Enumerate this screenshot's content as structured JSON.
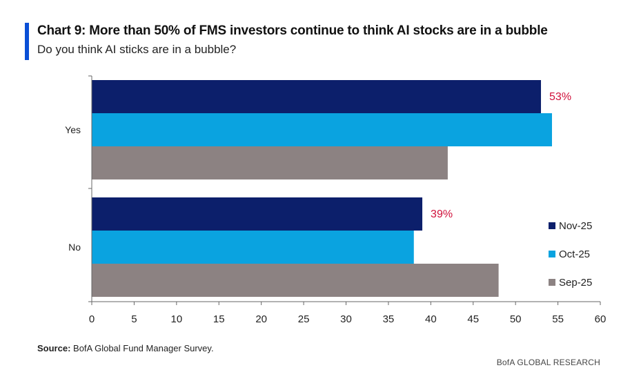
{
  "header": {
    "title": "Chart 9: More than 50% of FMS investors continue to think AI stocks are in a bubble",
    "subtitle": "Do you think AI sticks are in a bubble?",
    "accent_color": "#0a4fd6"
  },
  "footer": {
    "source_label": "Source:",
    "source_text": " BofA Global Fund Manager Survey.",
    "brand": "BofA GLOBAL RESEARCH"
  },
  "chart_data": {
    "type": "bar",
    "orientation": "horizontal",
    "categories": [
      "Yes",
      "No"
    ],
    "series": [
      {
        "name": "Nov-25",
        "color": "#0c1f6b",
        "values": [
          53,
          39
        ]
      },
      {
        "name": "Oct-25",
        "color": "#0aa3e0",
        "values": [
          54.3,
          38
        ]
      },
      {
        "name": "Sep-25",
        "color": "#8c8282",
        "values": [
          42,
          48
        ]
      }
    ],
    "data_labels": [
      {
        "series": "Nov-25",
        "category": "Yes",
        "text": "53%"
      },
      {
        "series": "Nov-25",
        "category": "No",
        "text": "39%"
      }
    ],
    "data_label_color": "#d0103a",
    "xlim": [
      0,
      60
    ],
    "x_ticks": [
      "0",
      "5",
      "10",
      "15",
      "20",
      "25",
      "30",
      "35",
      "40",
      "45",
      "50",
      "55",
      "60"
    ],
    "xlabel": "",
    "ylabel": "",
    "grid": false,
    "legend_position": "right"
  }
}
